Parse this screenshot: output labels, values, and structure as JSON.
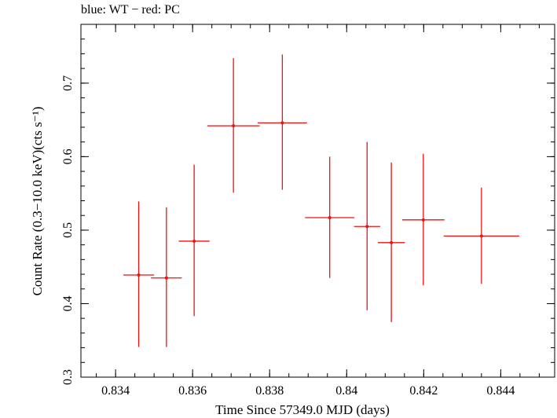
{
  "chart_data": {
    "type": "scatter",
    "title": "blue: WT − red: PC",
    "xlabel": "Time Since 57349.0 MJD (days)",
    "ylabel": "Count Rate (0.3−10.0 keV)(cts s⁻¹)",
    "xlim": [
      0.8331,
      0.8454
    ],
    "ylim": [
      0.3,
      0.78
    ],
    "x_ticks": [
      "0.834",
      "0.836",
      "0.838",
      "0.84",
      "0.842",
      "0.844"
    ],
    "y_ticks": [
      "0.3",
      "0.4",
      "0.5",
      "0.6",
      "0.7"
    ],
    "grid": false,
    "series": [
      {
        "color": "#ee1111",
        "points": [
          {
            "x": 0.8346,
            "xerr": 0.0004,
            "y": 0.439,
            "yerr_low": 0.098,
            "yerr_high": 0.1
          },
          {
            "x": 0.83532,
            "xerr": 0.0004,
            "y": 0.435,
            "yerr_low": 0.094,
            "yerr_high": 0.096
          },
          {
            "x": 0.83604,
            "xerr": 0.0004,
            "y": 0.485,
            "yerr_low": 0.102,
            "yerr_high": 0.104
          },
          {
            "x": 0.83706,
            "xerr": 0.00068,
            "y": 0.642,
            "yerr_low": 0.091,
            "yerr_high": 0.092
          },
          {
            "x": 0.83833,
            "xerr": 0.00064,
            "y": 0.646,
            "yerr_low": 0.091,
            "yerr_high": 0.093
          },
          {
            "x": 0.83956,
            "xerr": 0.00064,
            "y": 0.517,
            "yerr_low": 0.082,
            "yerr_high": 0.083
          },
          {
            "x": 0.84053,
            "xerr": 0.00034,
            "y": 0.505,
            "yerr_low": 0.114,
            "yerr_high": 0.115
          },
          {
            "x": 0.84116,
            "xerr": 0.00035,
            "y": 0.483,
            "yerr_low": 0.108,
            "yerr_high": 0.109
          },
          {
            "x": 0.84199,
            "xerr": 0.00055,
            "y": 0.514,
            "yerr_low": 0.089,
            "yerr_high": 0.09
          },
          {
            "x": 0.8435,
            "xerr": 0.00098,
            "y": 0.492,
            "yerr_low": 0.065,
            "yerr_high": 0.066
          }
        ]
      }
    ]
  }
}
